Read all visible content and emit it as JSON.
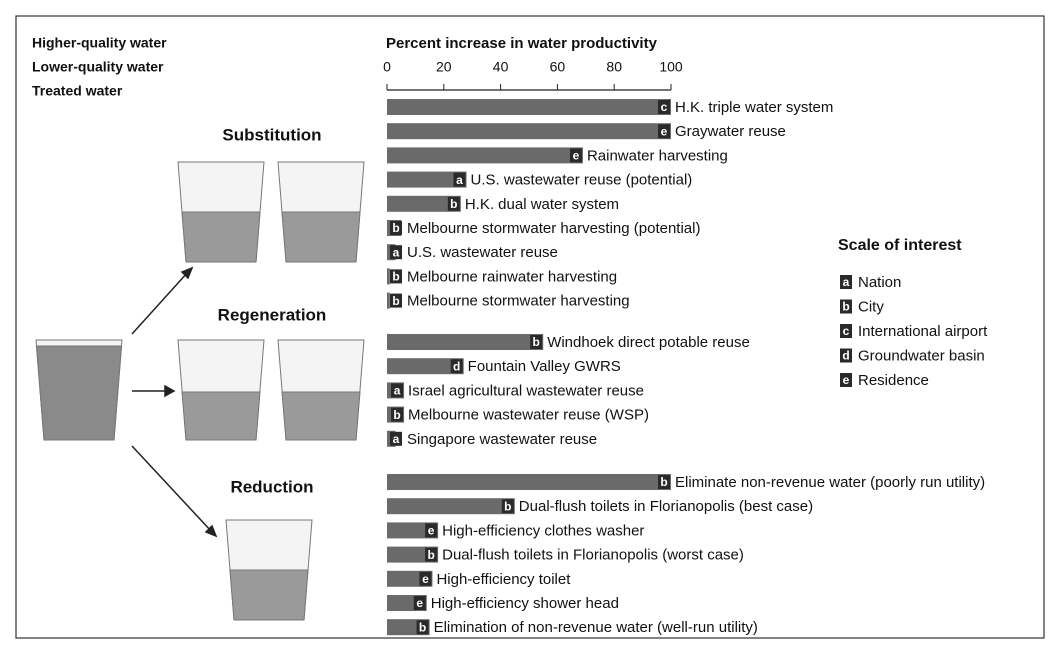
{
  "chart_data": {
    "type": "bar",
    "title": "Percent increase in water productivity",
    "xlim": [
      0,
      100
    ],
    "xticks": [
      0,
      20,
      40,
      60,
      80,
      100
    ],
    "color": "#6a6a6a",
    "water_legend": [
      "Higher-quality water",
      "Lower-quality water",
      "Treated water"
    ],
    "groups": [
      {
        "name": "Substitution",
        "categories": [
          "H.K. triple water system",
          "Graywater reuse",
          "Rainwater harvesting",
          "U.S. wastewater reuse (potential)",
          "H.K. dual water system",
          "Melbourne stormwater harvesting (potential)",
          "U.S. wastewater reuse",
          "Melbourne rainwater harvesting",
          "Melbourne stormwater harvesting"
        ],
        "values": [
          100,
          100,
          69,
          28,
          26,
          5,
          3,
          1,
          1
        ],
        "scales": [
          "c",
          "e",
          "e",
          "a",
          "b",
          "b",
          "a",
          "b",
          "b"
        ]
      },
      {
        "name": "Regeneration",
        "categories": [
          "Windhoek direct potable reuse",
          "Fountain Valley GWRS",
          "Israel agricultural wastewater reuse",
          "Melbourne wastewater reuse (WSP)",
          "Singapore wastewater reuse"
        ],
        "values": [
          55,
          27,
          6,
          6,
          3
        ],
        "scales": [
          "b",
          "d",
          "a",
          "b",
          "a"
        ]
      },
      {
        "name": "Reduction",
        "categories": [
          "Eliminate non-revenue water (poorly run utility)",
          "Dual-flush toilets in Florianopolis (best case)",
          "High-efficiency clothes washer",
          "Dual-flush toilets in Florianopolis (worst case)",
          "High-efficiency toilet",
          "High-efficiency shower head",
          "Elimination of non-revenue water (well-run utility)"
        ],
        "values": [
          100,
          45,
          18,
          18,
          16,
          14,
          15
        ],
        "scales": [
          "b",
          "b",
          "e",
          "b",
          "e",
          "e",
          "b"
        ]
      }
    ],
    "scale_legend": {
      "title": "Scale of interest",
      "items": [
        {
          "code": "a",
          "label": "Nation"
        },
        {
          "code": "b",
          "label": "City"
        },
        {
          "code": "c",
          "label": "International airport"
        },
        {
          "code": "d",
          "label": "Groundwater basin"
        },
        {
          "code": "e",
          "label": "Residence"
        }
      ]
    }
  }
}
